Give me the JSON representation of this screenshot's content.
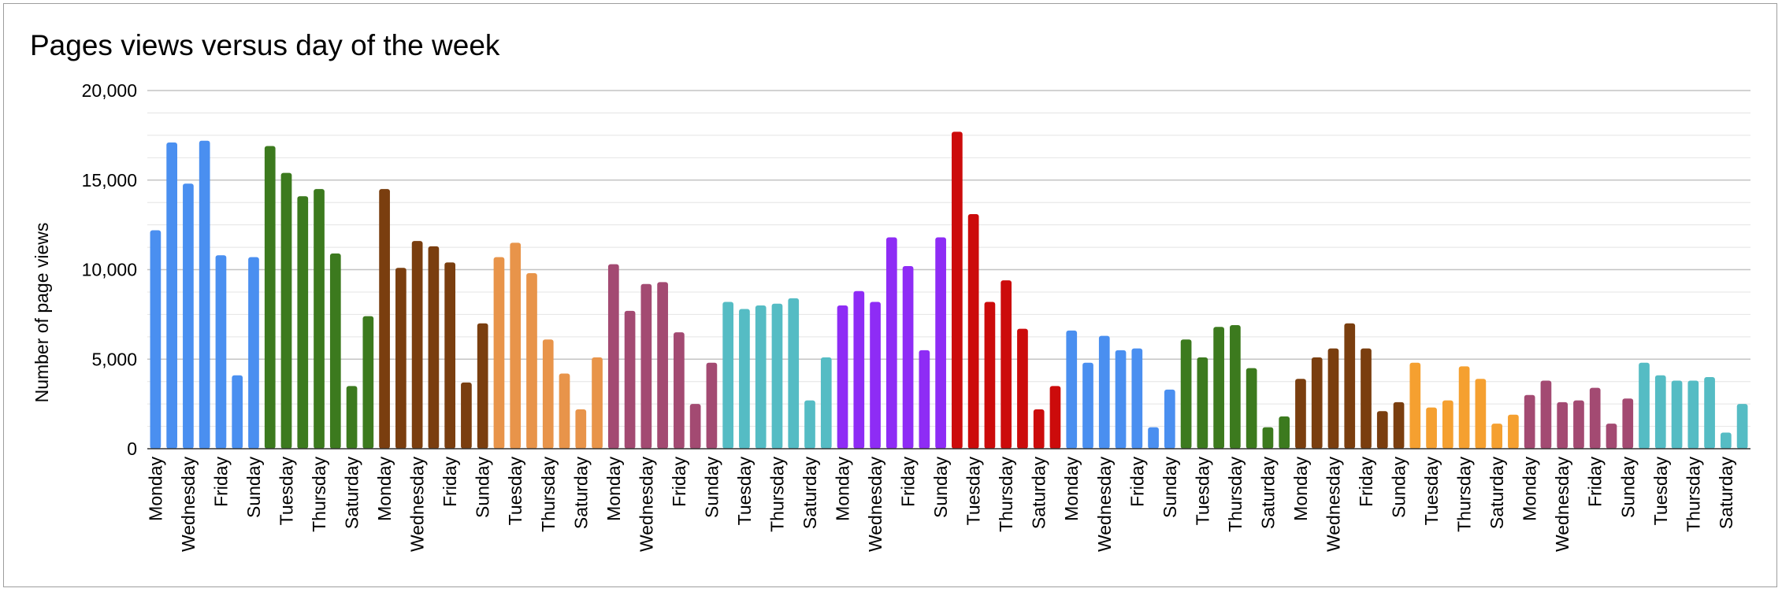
{
  "chart_data": {
    "type": "bar",
    "title": "Pages views versus day of the week",
    "xlabel": "",
    "ylabel": "Number of page views",
    "ylim": [
      0,
      20000
    ],
    "yticks": [
      "20,000",
      "15,000",
      "10,000",
      "5,000",
      "0"
    ],
    "ytick_values": [
      20000,
      15000,
      10000,
      5000,
      0
    ],
    "grid": true,
    "legend": "none",
    "days": [
      "Monday",
      "Tuesday",
      "Wednesday",
      "Thursday",
      "Friday",
      "Saturday",
      "Sunday"
    ],
    "categories": [
      "Monday",
      "Tuesday",
      "Wednesday",
      "Thursday",
      "Friday",
      "Saturday",
      "Sunday",
      "Monday",
      "Tuesday",
      "Wednesday",
      "Thursday",
      "Friday",
      "Saturday",
      "Sunday",
      "Monday",
      "Tuesday",
      "Wednesday",
      "Thursday",
      "Friday",
      "Saturday",
      "Sunday",
      "Monday",
      "Tuesday",
      "Wednesday",
      "Thursday",
      "Friday",
      "Saturday",
      "Sunday",
      "Monday",
      "Tuesday",
      "Wednesday",
      "Thursday",
      "Friday",
      "Saturday",
      "Sunday",
      "Monday",
      "Tuesday",
      "Wednesday",
      "Thursday",
      "Friday",
      "Saturday",
      "Sunday",
      "Monday",
      "Tuesday",
      "Wednesday",
      "Thursday",
      "Friday",
      "Saturday",
      "Sunday",
      "Monday",
      "Tuesday",
      "Wednesday",
      "Thursday",
      "Friday",
      "Saturday",
      "Sunday",
      "Monday",
      "Tuesday",
      "Wednesday",
      "Thursday",
      "Friday",
      "Saturday",
      "Sunday",
      "Monday",
      "Tuesday",
      "Wednesday",
      "Thursday",
      "Friday",
      "Saturday",
      "Sunday",
      "Monday",
      "Tuesday",
      "Wednesday",
      "Thursday",
      "Friday",
      "Saturday",
      "Sunday",
      "Monday",
      "Tuesday",
      "Wednesday",
      "Thursday",
      "Friday",
      "Saturday",
      "Sunday",
      "Monday",
      "Tuesday",
      "Wednesday",
      "Thursday",
      "Friday",
      "Saturday",
      "Sunday",
      "Monday",
      "Tuesday",
      "Wednesday",
      "Thursday",
      "Friday",
      "Saturday",
      "Sunday"
    ],
    "values": [
      12200,
      17100,
      14800,
      17200,
      10800,
      4100,
      10700,
      16900,
      15400,
      14100,
      14500,
      10900,
      3500,
      7400,
      14500,
      10100,
      11600,
      11300,
      10400,
      3700,
      7000,
      10700,
      11500,
      9800,
      6100,
      4200,
      2200,
      5100,
      10300,
      7700,
      9200,
      9300,
      6500,
      2500,
      4800,
      8200,
      7800,
      8000,
      8100,
      8400,
      2700,
      5100,
      8000,
      8800,
      8200,
      11800,
      10200,
      5500,
      11800,
      17700,
      13100,
      8200,
      9400,
      6700,
      2200,
      3500,
      6600,
      4800,
      6300,
      5500,
      5600,
      1200,
      3300,
      6100,
      5100,
      6800,
      6900,
      4500,
      1200,
      1800,
      3900,
      5100,
      5600,
      7000,
      5600,
      2100,
      2600,
      4800,
      2300,
      2700,
      4600,
      3900,
      1400,
      1900,
      3000,
      3800,
      2600,
      2700,
      3400,
      1400,
      2800,
      4800,
      4100,
      3800,
      3800,
      4000,
      900,
      2500
    ],
    "week_colors": [
      "#4a8ff0",
      "#3c7a1e",
      "#7a3e0f",
      "#e8944a",
      "#a34a72",
      "#55bcc4",
      "#8e2cf5",
      "#cc0b0b",
      "#4a8ff0",
      "#3c7a1e",
      "#7a3e0f",
      "#f5a030",
      "#a34a72",
      "#55bcc4"
    ]
  }
}
